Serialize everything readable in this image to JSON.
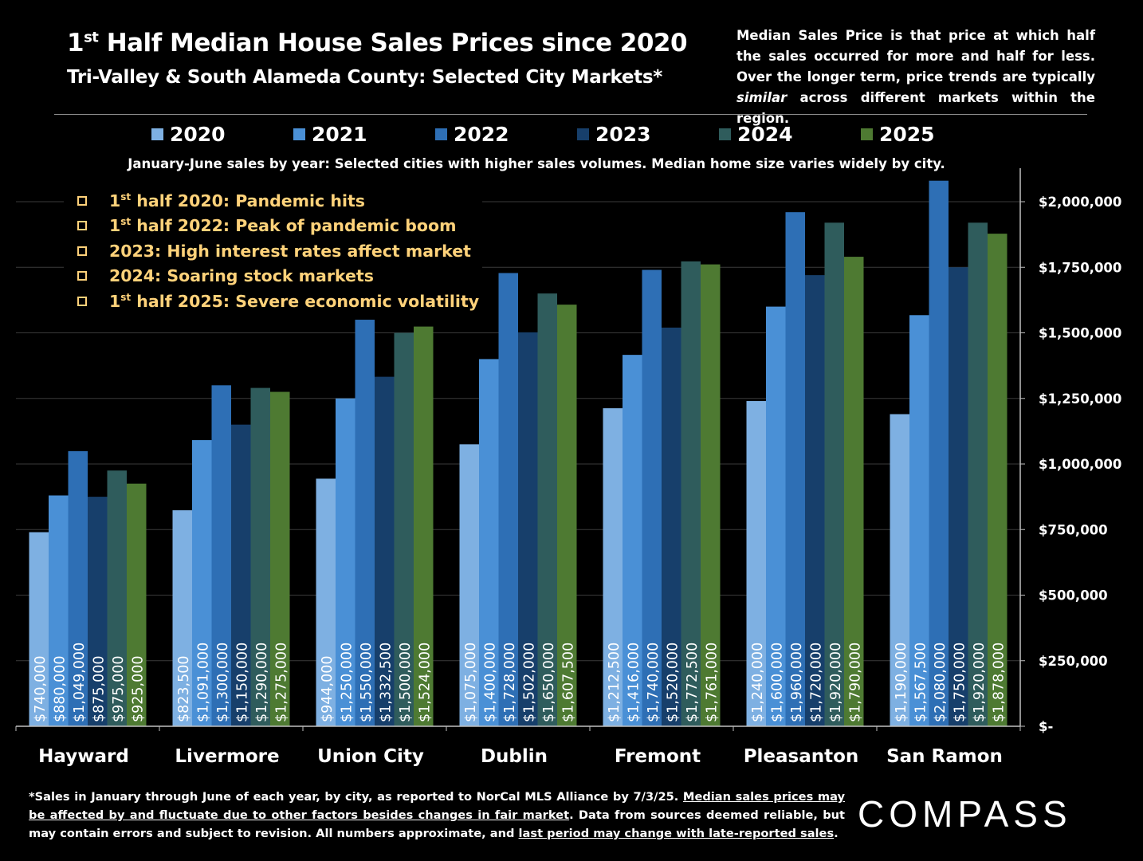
{
  "header": {
    "title_prefix": "1",
    "title_sup": "st",
    "title_rest": " Half Median House Sales Prices since 2020",
    "subtitle": "Tri-Valley & South Alameda County: Selected City Markets*",
    "definition_note": "Median Sales Price is that price at which half the sales occurred for more and half for less. Over the longer term, price trends are typically similar across different markets within the region.",
    "definition_italic_word": "similar"
  },
  "chart_note": "January-June sales by year: Selected cities with higher sales volumes. Median home size varies widely by city.",
  "annotations": [
    {
      "prefix": "1",
      "sup": "st",
      "text": " half 2020: Pandemic hits"
    },
    {
      "prefix": "1",
      "sup": "st",
      "text": " half 2022:  Peak of pandemic boom"
    },
    {
      "prefix": "",
      "sup": "",
      "text": "2023:  High interest rates affect market"
    },
    {
      "prefix": "",
      "sup": "",
      "text": "2024:  Soaring stock markets"
    },
    {
      "prefix": "1",
      "sup": "st",
      "text": " half 2025:  Severe economic volatility"
    }
  ],
  "footnote": {
    "p1": "*Sales in January through June of each year, by city, as reported to NorCal MLS Alliance by 7/3/25. ",
    "u1": "Median sales prices may be affected by and fluctuate due to other factors besides changes in fair market",
    "p2": ". Data from sources deemed reliable, but may contain errors and subject to revision. All numbers approximate, and ",
    "u2": "last period may change with late-reported sales",
    "p3": "."
  },
  "logo": "COMPASS",
  "chart_data": {
    "type": "bar",
    "categories": [
      "Hayward",
      "Livermore",
      "Union City",
      "Dublin",
      "Fremont",
      "Pleasanton",
      "San Ramon"
    ],
    "series": [
      {
        "name": "2020",
        "color": "#7eb0e2",
        "values": [
          740000,
          823500,
          944000,
          1075000,
          1212500,
          1240000,
          1190000
        ],
        "labels": [
          "$740,000",
          "$823,500",
          "$944,000",
          "$1,075,000",
          "$1,212,500",
          "$1,240,000",
          "$1,190,000"
        ]
      },
      {
        "name": "2021",
        "color": "#4a90d6",
        "values": [
          880000,
          1091000,
          1250000,
          1400000,
          1416000,
          1600000,
          1567500
        ],
        "labels": [
          "$880,000",
          "$1,091,000",
          "$1,250,000",
          "$1,400,000",
          "$1,416,000",
          "$1,600,000",
          "$1,567,500"
        ]
      },
      {
        "name": "2022",
        "color": "#2e6fb5",
        "values": [
          1049000,
          1300000,
          1550000,
          1728000,
          1740000,
          1960000,
          2080000
        ],
        "labels": [
          "$1,049,000",
          "$1,300,000",
          "$1,550,000",
          "$1,728,000",
          "$1,740,000",
          "$1,960,000",
          "$2,080,000"
        ]
      },
      {
        "name": "2023",
        "color": "#173f6b",
        "values": [
          875000,
          1150000,
          1332500,
          1502000,
          1520000,
          1720000,
          1750000
        ],
        "labels": [
          "$875,000",
          "$1,150,000",
          "$1,332,500",
          "$1,502,000",
          "$1,520,000",
          "$1,720,000",
          "$1,750,000"
        ]
      },
      {
        "name": "2024",
        "color": "#2f5c5c",
        "values": [
          975000,
          1290000,
          1500000,
          1650000,
          1772500,
          1920000,
          1920000
        ],
        "labels": [
          "$975,000",
          "$1,290,000",
          "$1,500,000",
          "$1,650,000",
          "$1,772,500",
          "$1,920,000",
          "$1,920,000"
        ]
      },
      {
        "name": "2025",
        "color": "#4e7a32",
        "values": [
          925000,
          1275000,
          1524000,
          1607500,
          1761000,
          1790000,
          1878000
        ],
        "labels": [
          "$925,000",
          "$1,275,000",
          "$1,524,000",
          "$1,607,500",
          "$1,761,000",
          "$1,790,000",
          "$1,878,000"
        ]
      }
    ],
    "y_axis": {
      "position": "right",
      "ylim": [
        0,
        2100000
      ],
      "ticks": [
        0,
        250000,
        500000,
        750000,
        1000000,
        1250000,
        1500000,
        1750000,
        2000000
      ],
      "tick_labels": [
        "$-",
        "$250,000",
        "$500,000",
        "$750,000",
        "$1,000,000",
        "$1,250,000",
        "$1,500,000",
        "$1,750,000",
        "$2,000,000"
      ]
    },
    "grid": true,
    "legend": "top"
  }
}
